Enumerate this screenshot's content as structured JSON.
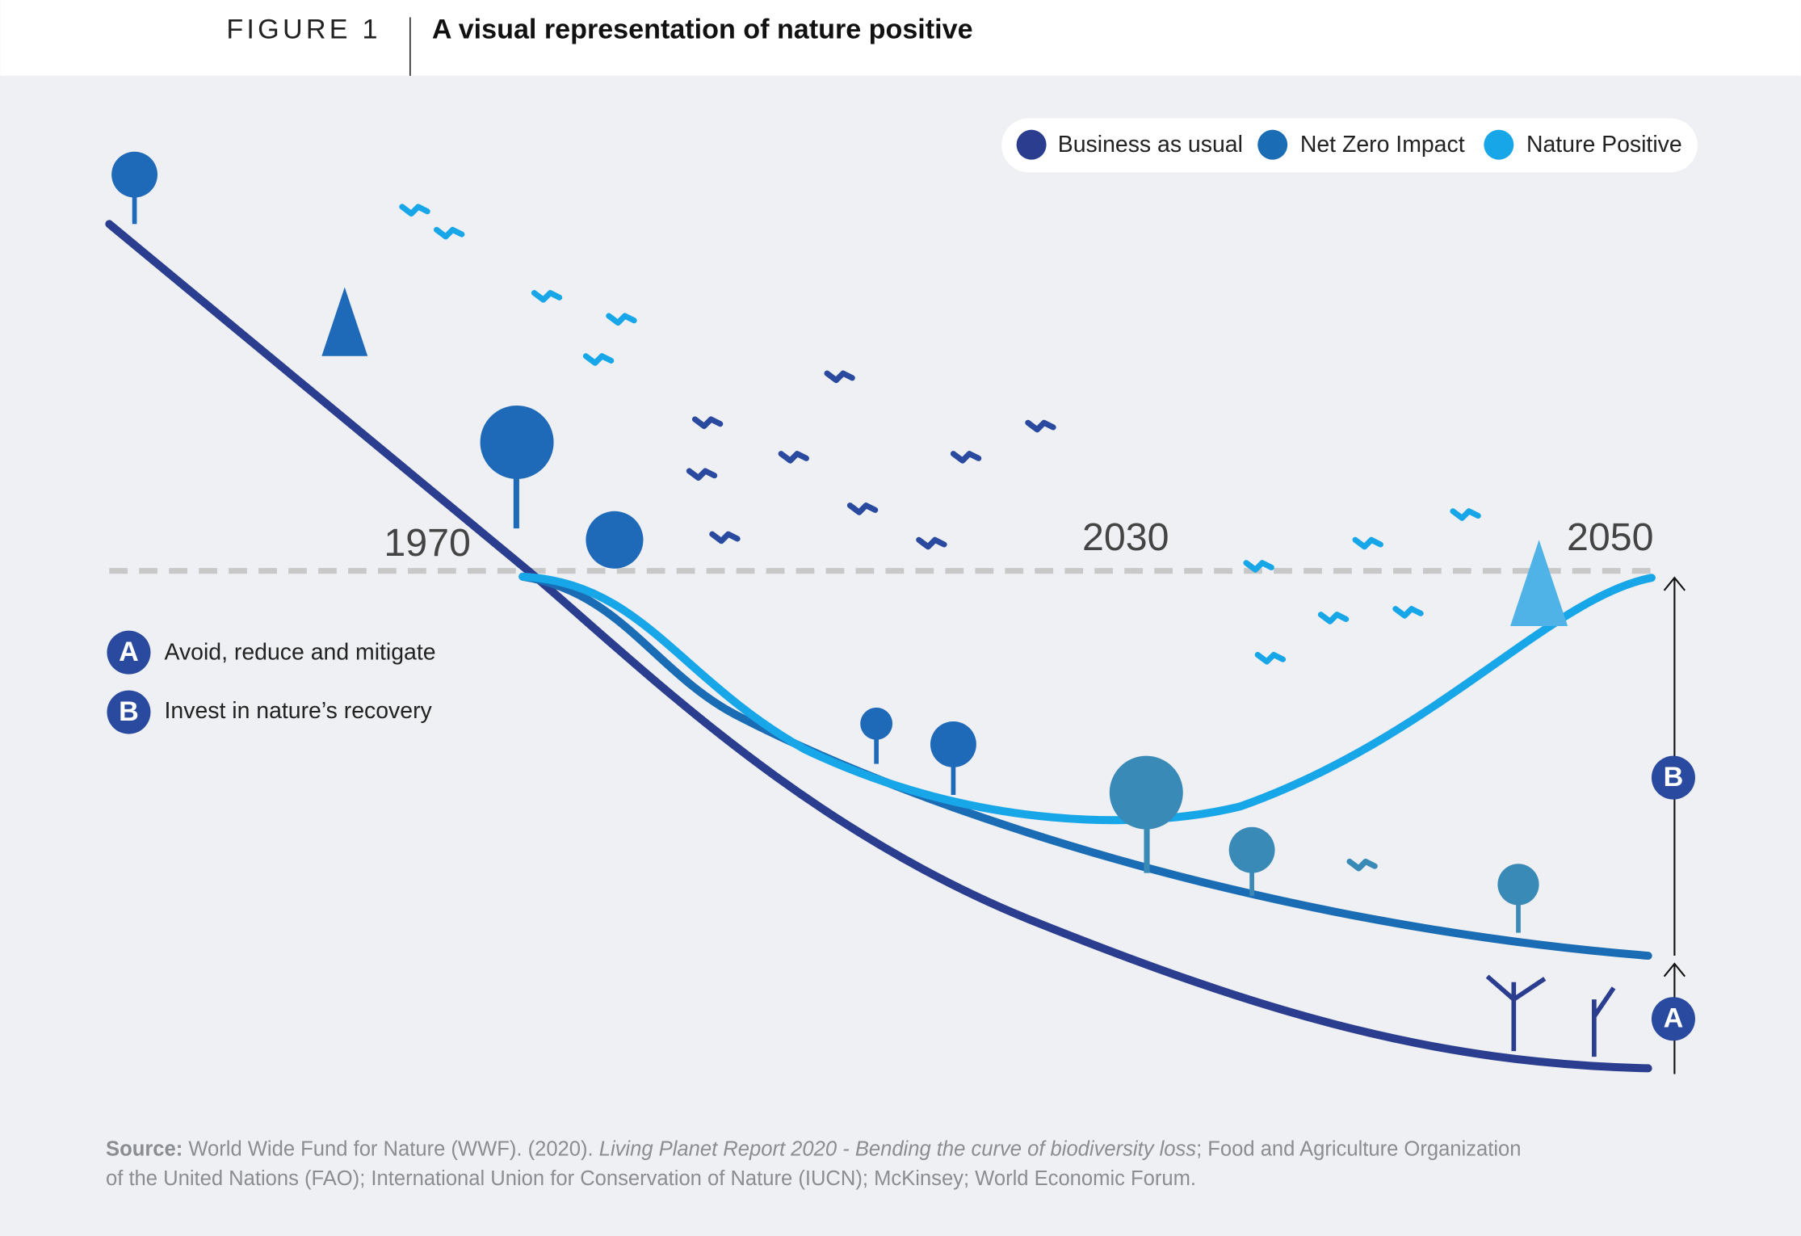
{
  "header": {
    "figure_label": "FIGURE 1",
    "title": "A visual representation of nature positive"
  },
  "legend": [
    {
      "label": "Business as usual"
    },
    {
      "label": "Net Zero Impact"
    },
    {
      "label": "Nature Positive"
    }
  ],
  "years": [
    "1970",
    "2030",
    "2050"
  ],
  "markers": [
    {
      "letter": "A",
      "label": "Avoid, reduce and mitigate"
    },
    {
      "letter": "B",
      "label": "Invest in nature’s recovery"
    }
  ],
  "source": {
    "label": "Source:",
    "text_1": " World Wide Fund for Nature (WWF). (2020). ",
    "title_italic": "Living Planet Report 2020 - Bending the curve of biodiversity loss",
    "text_2": "; Food and Agriculture Organization",
    "line_2": "of the United Nations (FAO); International Union for Conservation of Nature (IUCN); McKinsey; World Economic Forum."
  }
}
